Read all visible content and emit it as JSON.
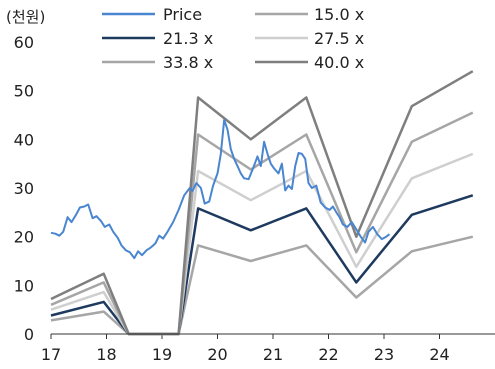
{
  "chart_data": {
    "type": "line",
    "title": "",
    "unit_label": "(천원)",
    "xlabel": "",
    "ylabel": "",
    "x_ticks": [
      "17",
      "18",
      "19",
      "20",
      "21",
      "22",
      "23",
      "24"
    ],
    "y_ticks": [
      0,
      10,
      20,
      30,
      40,
      50,
      60
    ],
    "xlim": [
      2017,
      2025
    ],
    "ylim": [
      0,
      60
    ],
    "grid": false,
    "legend_position": "top",
    "series": [
      {
        "name": "Price",
        "color": "#4a86d0",
        "width": 2,
        "points": [
          [
            2017.0,
            20.8
          ],
          [
            2017.08,
            20.6
          ],
          [
            2017.15,
            20.2
          ],
          [
            2017.22,
            21.0
          ],
          [
            2017.3,
            24.0
          ],
          [
            2017.37,
            23.0
          ],
          [
            2017.45,
            24.5
          ],
          [
            2017.52,
            26.0
          ],
          [
            2017.6,
            26.2
          ],
          [
            2017.67,
            26.6
          ],
          [
            2017.75,
            23.8
          ],
          [
            2017.82,
            24.2
          ],
          [
            2017.9,
            23.2
          ],
          [
            2017.97,
            22.0
          ],
          [
            2018.05,
            22.5
          ],
          [
            2018.12,
            21.0
          ],
          [
            2018.2,
            19.8
          ],
          [
            2018.27,
            18.2
          ],
          [
            2018.35,
            17.2
          ],
          [
            2018.42,
            16.8
          ],
          [
            2018.5,
            15.6
          ],
          [
            2018.57,
            17.0
          ],
          [
            2018.64,
            16.2
          ],
          [
            2018.72,
            17.2
          ],
          [
            2018.8,
            17.8
          ],
          [
            2018.88,
            18.6
          ],
          [
            2018.95,
            20.2
          ],
          [
            2019.02,
            19.6
          ],
          [
            2019.1,
            21.0
          ],
          [
            2019.2,
            23.0
          ],
          [
            2019.3,
            25.5
          ],
          [
            2019.4,
            28.5
          ],
          [
            2019.5,
            30.0
          ],
          [
            2019.55,
            29.4
          ],
          [
            2019.62,
            31.0
          ],
          [
            2019.7,
            30.0
          ],
          [
            2019.77,
            26.8
          ],
          [
            2019.85,
            27.2
          ],
          [
            2019.92,
            30.5
          ],
          [
            2020.0,
            33.0
          ],
          [
            2020.06,
            37.0
          ],
          [
            2020.12,
            44.0
          ],
          [
            2020.18,
            42.0
          ],
          [
            2020.24,
            38.0
          ],
          [
            2020.3,
            36.0
          ],
          [
            2020.36,
            34.5
          ],
          [
            2020.42,
            33.0
          ],
          [
            2020.48,
            32.0
          ],
          [
            2020.56,
            31.8
          ],
          [
            2020.64,
            34.0
          ],
          [
            2020.72,
            36.5
          ],
          [
            2020.78,
            34.5
          ],
          [
            2020.84,
            39.5
          ],
          [
            2020.9,
            37.0
          ],
          [
            2020.96,
            35.0
          ],
          [
            2021.02,
            34.0
          ],
          [
            2021.1,
            33.0
          ],
          [
            2021.16,
            35.0
          ],
          [
            2021.22,
            29.5
          ],
          [
            2021.28,
            30.5
          ],
          [
            2021.34,
            29.8
          ],
          [
            2021.4,
            34.5
          ],
          [
            2021.46,
            37.2
          ],
          [
            2021.52,
            37.0
          ],
          [
            2021.58,
            36.0
          ],
          [
            2021.64,
            31.0
          ],
          [
            2021.7,
            30.0
          ],
          [
            2021.78,
            30.5
          ],
          [
            2021.86,
            27.0
          ],
          [
            2021.94,
            26.0
          ],
          [
            2022.02,
            25.5
          ],
          [
            2022.08,
            26.2
          ],
          [
            2022.14,
            25.0
          ],
          [
            2022.2,
            24.0
          ],
          [
            2022.26,
            22.5
          ],
          [
            2022.34,
            22.0
          ],
          [
            2022.42,
            23.0
          ],
          [
            2022.5,
            21.5
          ],
          [
            2022.58,
            20.0
          ],
          [
            2022.66,
            18.8
          ],
          [
            2022.72,
            21.0
          ],
          [
            2022.8,
            22.0
          ],
          [
            2022.88,
            20.5
          ],
          [
            2022.96,
            19.5
          ],
          [
            2023.04,
            20.0
          ],
          [
            2023.1,
            20.5
          ]
        ]
      },
      {
        "name": "15.0 x",
        "color": "#a6a6a6",
        "width": 2.5,
        "points": [
          [
            2017,
            2.8
          ],
          [
            2017.95,
            4.6
          ],
          [
            2018.4,
            0
          ],
          [
            2019.3,
            0
          ],
          [
            2019.65,
            18.2
          ],
          [
            2020.6,
            15.0
          ],
          [
            2021.6,
            18.2
          ],
          [
            2022.5,
            7.5
          ],
          [
            2023.5,
            17.0
          ],
          [
            2024.6,
            20.0
          ]
        ]
      },
      {
        "name": "21.3 x",
        "color": "#1f3a5f",
        "width": 2.5,
        "points": [
          [
            2017,
            3.8
          ],
          [
            2017.95,
            6.6
          ],
          [
            2018.4,
            0
          ],
          [
            2019.3,
            0
          ],
          [
            2019.65,
            25.8
          ],
          [
            2020.6,
            21.3
          ],
          [
            2021.6,
            25.8
          ],
          [
            2022.5,
            10.6
          ],
          [
            2023.5,
            24.5
          ],
          [
            2024.6,
            28.5
          ]
        ]
      },
      {
        "name": "27.5 x",
        "color": "#cfcfcf",
        "width": 2.5,
        "points": [
          [
            2017,
            5.0
          ],
          [
            2017.95,
            8.6
          ],
          [
            2018.4,
            0
          ],
          [
            2019.3,
            0
          ],
          [
            2019.65,
            33.5
          ],
          [
            2020.6,
            27.5
          ],
          [
            2021.6,
            33.5
          ],
          [
            2022.5,
            13.8
          ],
          [
            2023.5,
            32.0
          ],
          [
            2024.6,
            37.0
          ]
        ]
      },
      {
        "name": "33.8 x",
        "color": "#a6a6a6",
        "width": 2.5,
        "points": [
          [
            2017,
            6.0
          ],
          [
            2017.95,
            10.6
          ],
          [
            2018.4,
            0
          ],
          [
            2019.3,
            0
          ],
          [
            2019.65,
            41.0
          ],
          [
            2020.6,
            33.8
          ],
          [
            2021.6,
            41.0
          ],
          [
            2022.5,
            16.8
          ],
          [
            2023.5,
            39.5
          ],
          [
            2024.6,
            45.5
          ]
        ]
      },
      {
        "name": "40.0 x",
        "color": "#7f7f7f",
        "width": 2.5,
        "points": [
          [
            2017,
            7.2
          ],
          [
            2017.95,
            12.4
          ],
          [
            2018.4,
            0
          ],
          [
            2019.3,
            0
          ],
          [
            2019.65,
            48.6
          ],
          [
            2020.6,
            40.0
          ],
          [
            2021.6,
            48.6
          ],
          [
            2022.5,
            20.0
          ],
          [
            2023.5,
            46.8
          ],
          [
            2024.6,
            54.0
          ]
        ]
      }
    ]
  }
}
